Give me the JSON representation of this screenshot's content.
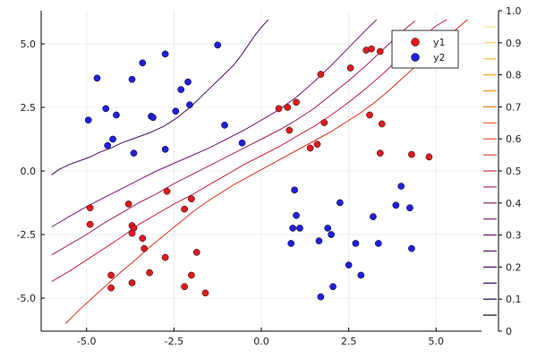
{
  "chart_data": {
    "type": "scatter",
    "xlim": [
      -6.3,
      6.3
    ],
    "ylim": [
      -6.3,
      6.3
    ],
    "x_ticks": [
      -5.0,
      -2.5,
      0.0,
      2.5,
      5.0
    ],
    "y_ticks": [
      -5.0,
      -2.5,
      0.0,
      2.5,
      5.0
    ],
    "x_tick_labels": [
      "-5.0",
      "-2.5",
      "0.0",
      "2.5",
      "5.0"
    ],
    "y_tick_labels": [
      "-5.0",
      "-2.5",
      "0.0",
      "2.5",
      "5.0"
    ],
    "grid": true,
    "legend_position": "top-right",
    "series": [
      {
        "name": "y1",
        "color": "#e31a1c",
        "points": [
          [
            -4.9,
            -1.45
          ],
          [
            -4.9,
            -2.1
          ],
          [
            -3.8,
            -1.3
          ],
          [
            -3.7,
            -2.15
          ],
          [
            -3.65,
            -2.25
          ],
          [
            -3.7,
            -2.45
          ],
          [
            -3.4,
            -2.65
          ],
          [
            -3.35,
            -3.05
          ],
          [
            -3.2,
            -4.0
          ],
          [
            -2.75,
            -3.4
          ],
          [
            -2.7,
            -0.8
          ],
          [
            -2.2,
            -1.5
          ],
          [
            -2.2,
            -4.55
          ],
          [
            -2.0,
            -4.1
          ],
          [
            -2.0,
            -1.1
          ],
          [
            -1.85,
            -3.2
          ],
          [
            -1.6,
            -4.8
          ],
          [
            -4.3,
            -4.1
          ],
          [
            -4.3,
            -4.6
          ],
          [
            -3.7,
            -4.4
          ],
          [
            0.5,
            2.45
          ],
          [
            0.75,
            2.5
          ],
          [
            1.0,
            2.7
          ],
          [
            0.8,
            1.6
          ],
          [
            1.4,
            0.9
          ],
          [
            1.6,
            1.05
          ],
          [
            1.7,
            3.8
          ],
          [
            1.8,
            1.9
          ],
          [
            2.55,
            4.05
          ],
          [
            3.0,
            4.75
          ],
          [
            3.15,
            4.8
          ],
          [
            3.4,
            4.7
          ],
          [
            3.1,
            2.2
          ],
          [
            3.45,
            1.85
          ],
          [
            3.4,
            0.7
          ],
          [
            4.3,
            0.65
          ],
          [
            4.8,
            0.55
          ],
          [
            4.5,
            4.85
          ]
        ]
      },
      {
        "name": "y2",
        "color": "#1f1fe0",
        "points": [
          [
            -4.95,
            2.0
          ],
          [
            -4.7,
            3.65
          ],
          [
            -4.45,
            2.45
          ],
          [
            -4.4,
            1.0
          ],
          [
            -4.25,
            1.25
          ],
          [
            -4.15,
            2.2
          ],
          [
            -3.7,
            3.6
          ],
          [
            -3.65,
            0.7
          ],
          [
            -3.4,
            4.25
          ],
          [
            -3.15,
            2.15
          ],
          [
            -3.1,
            2.1
          ],
          [
            -2.75,
            4.6
          ],
          [
            -2.75,
            0.85
          ],
          [
            -2.45,
            2.35
          ],
          [
            -2.3,
            3.2
          ],
          [
            -2.1,
            3.5
          ],
          [
            -2.05,
            2.6
          ],
          [
            -1.25,
            4.95
          ],
          [
            -1.05,
            1.8
          ],
          [
            -0.55,
            1.1
          ],
          [
            0.85,
            -2.85
          ],
          [
            0.9,
            -2.25
          ],
          [
            0.95,
            -0.75
          ],
          [
            1.0,
            -1.75
          ],
          [
            1.1,
            -2.25
          ],
          [
            1.65,
            -2.75
          ],
          [
            1.7,
            -4.95
          ],
          [
            1.9,
            -2.25
          ],
          [
            2.0,
            -2.5
          ],
          [
            2.05,
            -4.55
          ],
          [
            2.25,
            -1.25
          ],
          [
            2.5,
            -3.7
          ],
          [
            2.7,
            -2.85
          ],
          [
            2.85,
            -4.1
          ],
          [
            3.2,
            -1.8
          ],
          [
            3.35,
            -2.85
          ],
          [
            3.85,
            -1.35
          ],
          [
            4.0,
            -0.6
          ],
          [
            4.3,
            -3.05
          ],
          [
            4.25,
            -1.45
          ]
        ]
      }
    ],
    "contours": [
      {
        "level": 0.1,
        "color": "#4a0d62",
        "points": [
          [
            -6.0,
            -0.15
          ],
          [
            -5.8,
            0.05
          ],
          [
            -5.5,
            0.25
          ],
          [
            -5.2,
            0.4
          ],
          [
            -4.9,
            0.55
          ],
          [
            -4.6,
            0.75
          ],
          [
            -4.3,
            0.9
          ],
          [
            -4.0,
            1.1
          ],
          [
            -3.6,
            1.3
          ],
          [
            -3.2,
            1.5
          ],
          [
            -2.8,
            1.75
          ],
          [
            -2.4,
            2.1
          ],
          [
            -2.0,
            2.55
          ],
          [
            -1.7,
            2.95
          ],
          [
            -1.4,
            3.35
          ],
          [
            -1.1,
            3.75
          ],
          [
            -0.8,
            4.15
          ],
          [
            -0.6,
            4.5
          ],
          [
            -0.4,
            4.9
          ],
          [
            -0.2,
            5.3
          ],
          [
            0.0,
            5.65
          ],
          [
            0.2,
            5.95
          ]
        ]
      },
      {
        "level": 0.3,
        "color": "#7b1578",
        "points": [
          [
            -6.0,
            -2.2
          ],
          [
            -5.5,
            -1.8
          ],
          [
            -5.0,
            -1.4
          ],
          [
            -4.5,
            -1.05
          ],
          [
            -4.0,
            -0.7
          ],
          [
            -3.5,
            -0.35
          ],
          [
            -3.0,
            0.0
          ],
          [
            -2.5,
            0.3
          ],
          [
            -2.0,
            0.6
          ],
          [
            -1.5,
            0.9
          ],
          [
            -1.0,
            1.25
          ],
          [
            -0.5,
            1.6
          ],
          [
            0.0,
            2.0
          ],
          [
            0.5,
            2.4
          ],
          [
            1.0,
            2.9
          ],
          [
            1.5,
            3.5
          ],
          [
            2.0,
            4.15
          ],
          [
            2.5,
            4.85
          ],
          [
            3.0,
            5.55
          ],
          [
            3.3,
            5.95
          ]
        ]
      },
      {
        "level": 0.5,
        "color": "#a52060",
        "points": [
          [
            -6.0,
            -3.3
          ],
          [
            -5.5,
            -2.9
          ],
          [
            -5.0,
            -2.5
          ],
          [
            -4.5,
            -2.05
          ],
          [
            -4.0,
            -1.65
          ],
          [
            -3.5,
            -1.25
          ],
          [
            -3.0,
            -0.9
          ],
          [
            -2.5,
            -0.5
          ],
          [
            -2.0,
            -0.15
          ],
          [
            -1.5,
            0.2
          ],
          [
            -1.0,
            0.55
          ],
          [
            -0.5,
            0.9
          ],
          [
            0.0,
            1.25
          ],
          [
            0.5,
            1.6
          ],
          [
            1.0,
            2.0
          ],
          [
            1.5,
            2.45
          ],
          [
            2.0,
            3.0
          ],
          [
            2.5,
            3.55
          ],
          [
            3.0,
            4.15
          ],
          [
            3.5,
            4.8
          ],
          [
            4.0,
            5.45
          ],
          [
            4.4,
            5.9
          ]
        ]
      },
      {
        "level": 0.7,
        "color": "#c8243f",
        "points": [
          [
            -6.0,
            -4.35
          ],
          [
            -5.5,
            -3.95
          ],
          [
            -5.0,
            -3.5
          ],
          [
            -4.5,
            -3.05
          ],
          [
            -4.0,
            -2.6
          ],
          [
            -3.5,
            -2.1
          ],
          [
            -3.0,
            -1.7
          ],
          [
            -2.5,
            -1.3
          ],
          [
            -2.0,
            -0.95
          ],
          [
            -1.5,
            -0.55
          ],
          [
            -1.0,
            -0.15
          ],
          [
            -0.5,
            0.25
          ],
          [
            0.0,
            0.6
          ],
          [
            0.5,
            0.95
          ],
          [
            1.0,
            1.35
          ],
          [
            1.5,
            1.75
          ],
          [
            2.0,
            2.2
          ],
          [
            2.5,
            2.7
          ],
          [
            3.0,
            3.25
          ],
          [
            3.5,
            3.85
          ],
          [
            4.0,
            4.5
          ],
          [
            4.5,
            5.15
          ],
          [
            5.0,
            5.7
          ],
          [
            5.3,
            5.95
          ]
        ]
      },
      {
        "level": 0.9,
        "color": "#e0301f",
        "points": [
          [
            -5.6,
            -6.0
          ],
          [
            -5.2,
            -5.45
          ],
          [
            -4.8,
            -4.95
          ],
          [
            -4.4,
            -4.45
          ],
          [
            -4.0,
            -3.95
          ],
          [
            -3.6,
            -3.5
          ],
          [
            -3.2,
            -3.0
          ],
          [
            -2.8,
            -2.55
          ],
          [
            -2.4,
            -2.1
          ],
          [
            -2.0,
            -1.65
          ],
          [
            -1.6,
            -1.25
          ],
          [
            -1.2,
            -0.9
          ],
          [
            -0.8,
            -0.55
          ],
          [
            -0.4,
            -0.25
          ],
          [
            0.0,
            0.05
          ],
          [
            0.4,
            0.35
          ],
          [
            0.8,
            0.65
          ],
          [
            1.2,
            0.95
          ],
          [
            1.6,
            1.25
          ],
          [
            2.0,
            1.55
          ],
          [
            2.4,
            1.9
          ],
          [
            2.8,
            2.25
          ],
          [
            3.2,
            2.65
          ],
          [
            3.6,
            3.1
          ],
          [
            4.0,
            3.6
          ],
          [
            4.4,
            4.1
          ],
          [
            4.8,
            4.6
          ],
          [
            5.2,
            5.1
          ],
          [
            5.6,
            5.6
          ],
          [
            5.9,
            5.95
          ]
        ]
      }
    ],
    "colorbar": {
      "range": [
        0.0,
        1.0
      ],
      "ticks": [
        0.0,
        0.1,
        0.2,
        0.3,
        0.4,
        0.5,
        0.6,
        0.7,
        0.8,
        0.9,
        1.0
      ],
      "tick_labels": [
        "0",
        "0.1",
        "0.2",
        "0.3",
        "0.4",
        "0.5",
        "0.6",
        "0.7",
        "0.8",
        "0.9",
        "1.0"
      ],
      "line_levels": [
        0.05,
        0.1,
        0.15,
        0.2,
        0.25,
        0.3,
        0.35,
        0.4,
        0.45,
        0.5,
        0.55,
        0.6,
        0.65,
        0.7,
        0.75,
        0.8,
        0.85,
        0.9,
        0.95
      ],
      "colors": [
        "#0a0318",
        "#1e0848",
        "#330a62",
        "#4a0d6a",
        "#5f136e",
        "#741a6e",
        "#88206a",
        "#9c2664",
        "#b02f5a",
        "#c33a4e",
        "#d34842",
        "#e15936",
        "#ec6a29",
        "#f37d1b",
        "#f8921a",
        "#fba62b",
        "#fbbb3f",
        "#f8d15a",
        "#f4e77b"
      ]
    }
  }
}
